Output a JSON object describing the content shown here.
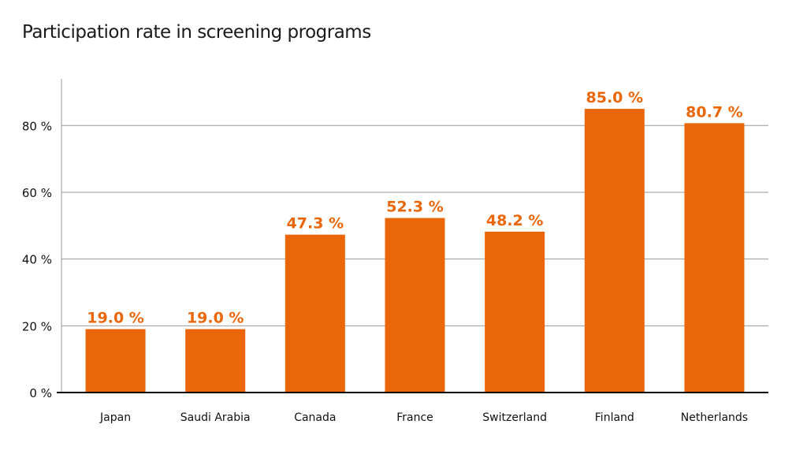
{
  "chart_data": {
    "type": "bar",
    "title": "Participation rate in screening programs",
    "categories": [
      "Japan",
      "Saudi Arabia",
      "Canada",
      "France",
      "Switzerland",
      "Finland",
      "Netherlands"
    ],
    "values": [
      19.0,
      19.0,
      47.3,
      52.3,
      48.2,
      85.0,
      80.7
    ],
    "data_labels": [
      "19.0 %",
      "19.0 %",
      "47.3 %",
      "52.3 %",
      "48.2 %",
      "85.0 %",
      "80.7 %"
    ],
    "yticks": [
      0,
      20,
      40,
      60,
      80
    ],
    "ytick_labels": [
      "0 %",
      "20 %",
      "40 %",
      "60 %",
      "80 %"
    ],
    "xlabel": "",
    "ylabel": "",
    "ylim": [
      0,
      94
    ],
    "grid": true,
    "colors": {
      "bar": "#EB6608",
      "label": "#EB6608",
      "grid": "#999999",
      "axis": "#000000"
    }
  }
}
